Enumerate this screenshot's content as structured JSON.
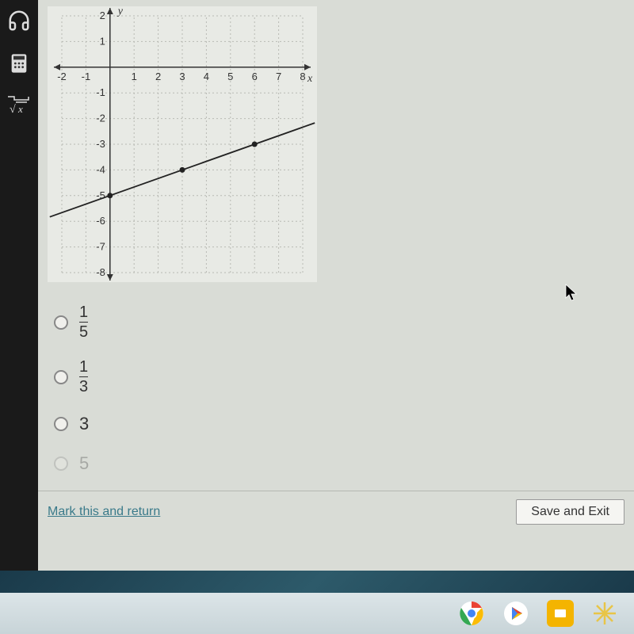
{
  "sidebar": {
    "tools": [
      {
        "name": "headphones-icon"
      },
      {
        "name": "calculator-icon"
      },
      {
        "name": "formula-icon"
      }
    ]
  },
  "chart": {
    "type": "line",
    "x_label": "x",
    "y_label": "y",
    "xlim": [
      -2,
      8
    ],
    "ylim": [
      -8,
      2
    ],
    "xtick_step": 1,
    "ytick_step": 1,
    "xticks": [
      -2,
      -1,
      1,
      2,
      3,
      4,
      5,
      6,
      7,
      8
    ],
    "yticks": [
      2,
      1,
      -1,
      -2,
      -3,
      -4,
      -5,
      -6,
      -7,
      -8
    ],
    "points": [
      {
        "x": 0,
        "y": -5
      },
      {
        "x": 3,
        "y": -4
      },
      {
        "x": 6,
        "y": -3
      }
    ],
    "line_start": {
      "x": -2.5,
      "y": -5.83
    },
    "line_end": {
      "x": 8.5,
      "y": -2.17
    },
    "line_color": "#222222",
    "point_color": "#222222",
    "grid_color": "#b8bab4",
    "axis_color": "#333333",
    "background_color": "#e8eae5",
    "label_fontsize": 13,
    "axis_label_fontsize": 14,
    "point_radius": 3.5
  },
  "options": [
    {
      "type": "fraction",
      "num": "1",
      "den": "5"
    },
    {
      "type": "fraction",
      "num": "1",
      "den": "3"
    },
    {
      "type": "whole",
      "value": "3"
    },
    {
      "type": "whole",
      "value": "5",
      "cutoff": true
    }
  ],
  "footer": {
    "link_text": "Mark this and return",
    "button_text": "Save and Exit"
  },
  "taskbar": {
    "icons": [
      "chrome",
      "play",
      "slides",
      "star"
    ]
  }
}
